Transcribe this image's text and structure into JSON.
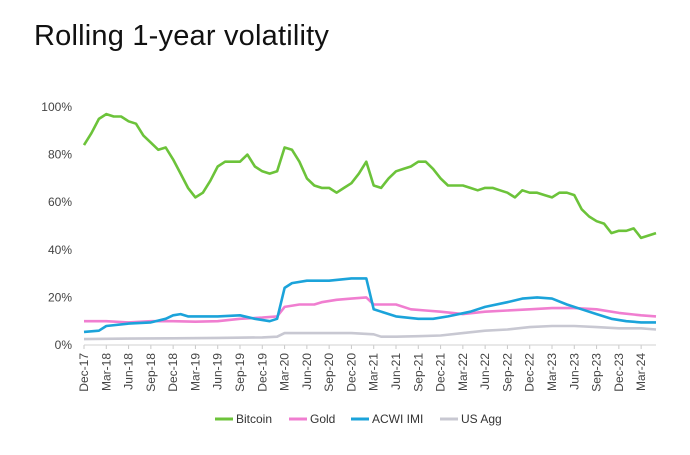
{
  "chart_data": {
    "type": "line",
    "title": "Rolling 1-year volatility",
    "xlabel": "",
    "ylabel": "",
    "ylim": [
      0,
      100
    ],
    "y_ticks": [
      0,
      20,
      40,
      60,
      80,
      100
    ],
    "y_tick_labels": [
      "0%",
      "20%",
      "40%",
      "60%",
      "80%",
      "100%"
    ],
    "x_start": "2017-12",
    "x_end": "2024-05",
    "x_ticks": [
      "2017-12",
      "2018-03",
      "2018-06",
      "2018-09",
      "2018-12",
      "2019-03",
      "2019-06",
      "2019-09",
      "2019-12",
      "2020-03",
      "2020-06",
      "2020-09",
      "2020-12",
      "2021-03",
      "2021-06",
      "2021-09",
      "2021-12",
      "2022-03",
      "2022-06",
      "2022-09",
      "2022-12",
      "2023-03",
      "2023-06",
      "2023-09",
      "2023-12",
      "2024-03"
    ],
    "x_tick_labels": [
      "Dec-17",
      "Mar-18",
      "Jun-18",
      "Sep-18",
      "Dec-18",
      "Mar-19",
      "Jun-19",
      "Sep-19",
      "Dec-19",
      "Mar-20",
      "Jun-20",
      "Sep-20",
      "Dec-20",
      "Mar-21",
      "Jun-21",
      "Sep-21",
      "Dec-21",
      "Mar-22",
      "Jun-22",
      "Sep-22",
      "Dec-22",
      "Mar-23",
      "Jun-23",
      "Sep-23",
      "Dec-23",
      "Mar-24"
    ],
    "grid": false,
    "legend": "bottom",
    "series": [
      {
        "name": "Bitcoin",
        "color": "#6cc33a",
        "points": [
          [
            "2017-12",
            84
          ],
          [
            "2018-01",
            89
          ],
          [
            "2018-02",
            95
          ],
          [
            "2018-03",
            97
          ],
          [
            "2018-04",
            96
          ],
          [
            "2018-05",
            96
          ],
          [
            "2018-06",
            94
          ],
          [
            "2018-07",
            93
          ],
          [
            "2018-08",
            88
          ],
          [
            "2018-09",
            85
          ],
          [
            "2018-10",
            82
          ],
          [
            "2018-11",
            83
          ],
          [
            "2018-12",
            78
          ],
          [
            "2019-01",
            72
          ],
          [
            "2019-02",
            66
          ],
          [
            "2019-03",
            62
          ],
          [
            "2019-04",
            64
          ],
          [
            "2019-05",
            69
          ],
          [
            "2019-06",
            75
          ],
          [
            "2019-07",
            77
          ],
          [
            "2019-08",
            77
          ],
          [
            "2019-09",
            77
          ],
          [
            "2019-10",
            80
          ],
          [
            "2019-11",
            75
          ],
          [
            "2019-12",
            73
          ],
          [
            "2020-01",
            72
          ],
          [
            "2020-02",
            73
          ],
          [
            "2020-03",
            83
          ],
          [
            "2020-04",
            82
          ],
          [
            "2020-05",
            77
          ],
          [
            "2020-06",
            70
          ],
          [
            "2020-07",
            67
          ],
          [
            "2020-08",
            66
          ],
          [
            "2020-09",
            66
          ],
          [
            "2020-10",
            64
          ],
          [
            "2020-11",
            66
          ],
          [
            "2020-12",
            68
          ],
          [
            "2021-01",
            72
          ],
          [
            "2021-02",
            77
          ],
          [
            "2021-03",
            67
          ],
          [
            "2021-04",
            66
          ],
          [
            "2021-05",
            70
          ],
          [
            "2021-06",
            73
          ],
          [
            "2021-07",
            74
          ],
          [
            "2021-08",
            75
          ],
          [
            "2021-09",
            77
          ],
          [
            "2021-10",
            77
          ],
          [
            "2021-11",
            74
          ],
          [
            "2021-12",
            70
          ],
          [
            "2022-01",
            67
          ],
          [
            "2022-02",
            67
          ],
          [
            "2022-03",
            67
          ],
          [
            "2022-04",
            66
          ],
          [
            "2022-05",
            65
          ],
          [
            "2022-06",
            66
          ],
          [
            "2022-07",
            66
          ],
          [
            "2022-08",
            65
          ],
          [
            "2022-09",
            64
          ],
          [
            "2022-10",
            62
          ],
          [
            "2022-11",
            65
          ],
          [
            "2022-12",
            64
          ],
          [
            "2023-01",
            64
          ],
          [
            "2023-02",
            63
          ],
          [
            "2023-03",
            62
          ],
          [
            "2023-04",
            64
          ],
          [
            "2023-05",
            64
          ],
          [
            "2023-06",
            63
          ],
          [
            "2023-07",
            57
          ],
          [
            "2023-08",
            54
          ],
          [
            "2023-09",
            52
          ],
          [
            "2023-10",
            51
          ],
          [
            "2023-11",
            47
          ],
          [
            "2023-12",
            48
          ],
          [
            "2024-01",
            48
          ],
          [
            "2024-02",
            49
          ],
          [
            "2024-03",
            45
          ],
          [
            "2024-04",
            46
          ],
          [
            "2024-05",
            47
          ]
        ]
      },
      {
        "name": "Gold",
        "color": "#f07ed0",
        "points": [
          [
            "2017-12",
            10
          ],
          [
            "2018-03",
            10
          ],
          [
            "2018-06",
            9.5
          ],
          [
            "2018-09",
            10
          ],
          [
            "2018-12",
            10
          ],
          [
            "2019-03",
            9.8
          ],
          [
            "2019-06",
            10
          ],
          [
            "2019-09",
            11
          ],
          [
            "2019-12",
            11.5
          ],
          [
            "2020-02",
            12
          ],
          [
            "2020-03",
            16
          ],
          [
            "2020-05",
            17
          ],
          [
            "2020-07",
            17
          ],
          [
            "2020-08",
            18
          ],
          [
            "2020-10",
            19
          ],
          [
            "2020-12",
            19.5
          ],
          [
            "2021-02",
            20
          ],
          [
            "2021-03",
            17
          ],
          [
            "2021-06",
            17
          ],
          [
            "2021-08",
            15
          ],
          [
            "2021-10",
            14.5
          ],
          [
            "2021-12",
            14
          ],
          [
            "2022-03",
            13
          ],
          [
            "2022-06",
            14
          ],
          [
            "2022-09",
            14.5
          ],
          [
            "2022-12",
            15
          ],
          [
            "2023-03",
            15.5
          ],
          [
            "2023-06",
            15.5
          ],
          [
            "2023-09",
            15
          ],
          [
            "2023-12",
            13.5
          ],
          [
            "2024-03",
            12.5
          ],
          [
            "2024-05",
            12
          ]
        ]
      },
      {
        "name": "ACWI IMI",
        "color": "#1ba3da",
        "points": [
          [
            "2017-12",
            5.5
          ],
          [
            "2018-02",
            6
          ],
          [
            "2018-03",
            8
          ],
          [
            "2018-06",
            9
          ],
          [
            "2018-09",
            9.5
          ],
          [
            "2018-11",
            11
          ],
          [
            "2018-12",
            12.5
          ],
          [
            "2019-01",
            13
          ],
          [
            "2019-02",
            12
          ],
          [
            "2019-06",
            12
          ],
          [
            "2019-09",
            12.5
          ],
          [
            "2019-11",
            11
          ],
          [
            "2020-01",
            10
          ],
          [
            "2020-02",
            11
          ],
          [
            "2020-03",
            24
          ],
          [
            "2020-04",
            26
          ],
          [
            "2020-06",
            27
          ],
          [
            "2020-09",
            27
          ],
          [
            "2020-12",
            28
          ],
          [
            "2021-02",
            28
          ],
          [
            "2021-03",
            15
          ],
          [
            "2021-06",
            12
          ],
          [
            "2021-09",
            11
          ],
          [
            "2021-11",
            11
          ],
          [
            "2022-01",
            12
          ],
          [
            "2022-04",
            14
          ],
          [
            "2022-06",
            16
          ],
          [
            "2022-09",
            18
          ],
          [
            "2022-11",
            19.5
          ],
          [
            "2023-01",
            20
          ],
          [
            "2023-03",
            19.5
          ],
          [
            "2023-05",
            17
          ],
          [
            "2023-07",
            15
          ],
          [
            "2023-09",
            13
          ],
          [
            "2023-11",
            11
          ],
          [
            "2024-01",
            10
          ],
          [
            "2024-03",
            9.5
          ],
          [
            "2024-05",
            9.5
          ]
        ]
      },
      {
        "name": "US Agg",
        "color": "#c8c8d2",
        "points": [
          [
            "2017-12",
            2.5
          ],
          [
            "2018-06",
            2.7
          ],
          [
            "2018-12",
            2.8
          ],
          [
            "2019-06",
            3
          ],
          [
            "2019-12",
            3.2
          ],
          [
            "2020-02",
            3.5
          ],
          [
            "2020-03",
            5
          ],
          [
            "2020-06",
            5
          ],
          [
            "2020-12",
            5
          ],
          [
            "2021-03",
            4.5
          ],
          [
            "2021-04",
            3.5
          ],
          [
            "2021-06",
            3.5
          ],
          [
            "2021-09",
            3.7
          ],
          [
            "2021-12",
            4
          ],
          [
            "2022-03",
            5
          ],
          [
            "2022-06",
            6
          ],
          [
            "2022-09",
            6.5
          ],
          [
            "2022-12",
            7.5
          ],
          [
            "2023-03",
            8
          ],
          [
            "2023-06",
            8
          ],
          [
            "2023-09",
            7.5
          ],
          [
            "2023-12",
            7
          ],
          [
            "2024-03",
            7
          ],
          [
            "2024-05",
            6.5
          ]
        ]
      }
    ]
  }
}
